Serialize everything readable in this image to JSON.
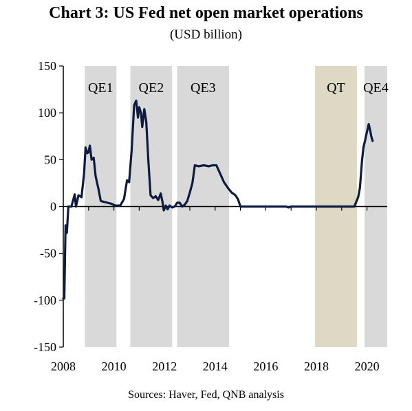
{
  "chart_data": {
    "type": "line",
    "title": "Chart 3: US Fed net open market operations",
    "subtitle": "(USD billion)",
    "source": "Sources: Haver, Fed, QNB analysis",
    "xlabel": "",
    "ylabel": "",
    "xlim": [
      2008.0,
      2020.8
    ],
    "ylim": [
      -150,
      150
    ],
    "y_ticks": [
      150,
      100,
      50,
      0,
      -50,
      -100,
      -150
    ],
    "y_tick_labels": [
      "150",
      "100",
      "50",
      "0",
      "-50",
      "-100",
      "-150"
    ],
    "x_ticks": [
      2008,
      2010,
      2012,
      2014,
      2016,
      2018,
      2020
    ],
    "x_tick_labels": [
      "2008",
      "2010",
      "2012",
      "2014",
      "2016",
      "2018",
      "2020"
    ],
    "grid": false,
    "legend": "none",
    "colors": {
      "line": "#0d1b3e",
      "qe_band": "#d9d9d9",
      "qt_band": "#ddd9c4",
      "axis": "#000000"
    },
    "bands": [
      {
        "label": "QE1",
        "start": 2008.85,
        "end": 2010.1,
        "kind": "qe"
      },
      {
        "label": "QE2",
        "start": 2010.65,
        "end": 2012.3,
        "kind": "qe"
      },
      {
        "label": "QE3",
        "start": 2012.5,
        "end": 2014.55,
        "kind": "qe"
      },
      {
        "label": "QT",
        "start": 2017.95,
        "end": 2019.6,
        "kind": "qt"
      },
      {
        "label": "QE4",
        "start": 2019.9,
        "end": 2020.8,
        "kind": "qe"
      }
    ],
    "series": [
      {
        "points": [
          [
            2008.0,
            -98
          ],
          [
            2008.04,
            -98
          ],
          [
            2008.09,
            -20
          ],
          [
            2008.14,
            -28
          ],
          [
            2008.2,
            0
          ],
          [
            2008.32,
            0
          ],
          [
            2008.45,
            13
          ],
          [
            2008.5,
            0
          ],
          [
            2008.6,
            12
          ],
          [
            2008.72,
            10
          ],
          [
            2008.82,
            35
          ],
          [
            2008.88,
            63
          ],
          [
            2008.95,
            57
          ],
          [
            2009.0,
            58
          ],
          [
            2009.05,
            65
          ],
          [
            2009.12,
            50
          ],
          [
            2009.2,
            52
          ],
          [
            2009.28,
            32
          ],
          [
            2009.38,
            20
          ],
          [
            2009.48,
            6
          ],
          [
            2009.6,
            5
          ],
          [
            2009.75,
            4
          ],
          [
            2009.9,
            3
          ],
          [
            2010.05,
            1
          ],
          [
            2010.25,
            1
          ],
          [
            2010.4,
            8
          ],
          [
            2010.52,
            28
          ],
          [
            2010.6,
            26
          ],
          [
            2010.7,
            60
          ],
          [
            2010.8,
            108
          ],
          [
            2010.88,
            113
          ],
          [
            2010.95,
            95
          ],
          [
            2011.0,
            106
          ],
          [
            2011.07,
            100
          ],
          [
            2011.12,
            85
          ],
          [
            2011.2,
            104
          ],
          [
            2011.28,
            90
          ],
          [
            2011.36,
            50
          ],
          [
            2011.45,
            12
          ],
          [
            2011.55,
            9
          ],
          [
            2011.65,
            11
          ],
          [
            2011.75,
            7
          ],
          [
            2011.85,
            14
          ],
          [
            2011.92,
            5
          ],
          [
            2011.97,
            -4
          ],
          [
            2012.05,
            1
          ],
          [
            2012.12,
            -3
          ],
          [
            2012.2,
            1
          ],
          [
            2012.3,
            -1
          ],
          [
            2012.4,
            0
          ],
          [
            2012.5,
            4
          ],
          [
            2012.6,
            4
          ],
          [
            2012.7,
            0
          ],
          [
            2012.8,
            2
          ],
          [
            2012.9,
            6
          ],
          [
            2013.0,
            15
          ],
          [
            2013.1,
            25
          ],
          [
            2013.2,
            44
          ],
          [
            2013.35,
            43
          ],
          [
            2013.55,
            44
          ],
          [
            2013.75,
            43
          ],
          [
            2013.9,
            44
          ],
          [
            2014.05,
            44
          ],
          [
            2014.15,
            38
          ],
          [
            2014.25,
            32
          ],
          [
            2014.35,
            26
          ],
          [
            2014.5,
            20
          ],
          [
            2014.65,
            15
          ],
          [
            2014.8,
            12
          ],
          [
            2014.9,
            8
          ],
          [
            2015.0,
            0
          ],
          [
            2015.2,
            0
          ],
          [
            2016.5,
            0
          ],
          [
            2016.8,
            0
          ],
          [
            2016.9,
            -1
          ],
          [
            2017.0,
            0
          ],
          [
            2018.5,
            0
          ],
          [
            2019.5,
            0
          ],
          [
            2019.65,
            10
          ],
          [
            2019.72,
            20
          ],
          [
            2019.8,
            48
          ],
          [
            2019.86,
            63
          ],
          [
            2019.92,
            70
          ],
          [
            2020.0,
            80
          ],
          [
            2020.07,
            88
          ],
          [
            2020.12,
            82
          ],
          [
            2020.17,
            75
          ],
          [
            2020.22,
            70
          ]
        ]
      }
    ]
  }
}
